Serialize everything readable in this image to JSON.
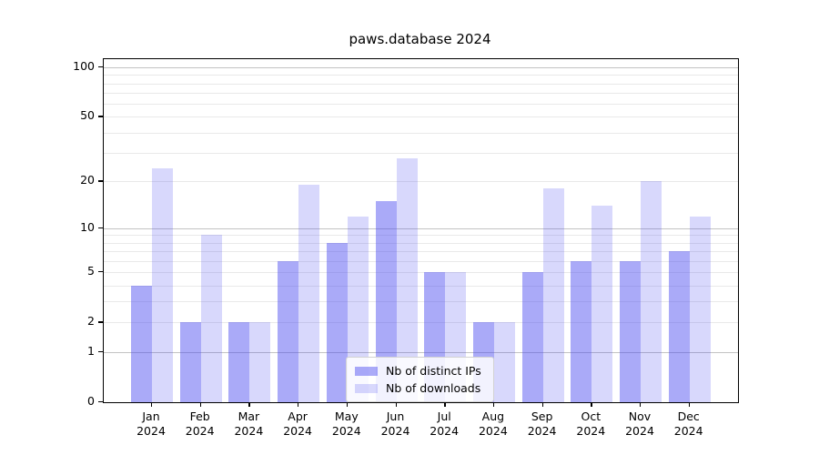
{
  "chart_data": {
    "type": "bar",
    "title": "paws.database 2024",
    "categories": [
      "Jan 2024",
      "Feb 2024",
      "Mar 2024",
      "Apr 2024",
      "May 2024",
      "Jun 2024",
      "Jul 2024",
      "Aug 2024",
      "Sep 2024",
      "Oct 2024",
      "Nov 2024",
      "Dec 2024"
    ],
    "series": [
      {
        "name": "Nb of distinct IPs",
        "color": "rgba(70,70,240,0.46)",
        "values": [
          4,
          2,
          2,
          6,
          8,
          15,
          5,
          2,
          5,
          6,
          6,
          7
        ]
      },
      {
        "name": "Nb of downloads",
        "color": "rgba(70,70,240,0.21)",
        "values": [
          24,
          9,
          2,
          19,
          12,
          28,
          5,
          2,
          18,
          14,
          20,
          12
        ]
      }
    ],
    "yscale": "log1p",
    "ylim": [
      0,
      112
    ],
    "yticks": [
      0,
      1,
      2,
      5,
      10,
      20,
      50,
      100
    ],
    "ytick_labels": [
      "0",
      "1",
      "2",
      "5",
      "10",
      "20",
      "50",
      "100"
    ],
    "major_gridlines": [
      1,
      10,
      100
    ],
    "minor_gridlines": [
      2,
      3,
      4,
      5,
      6,
      7,
      8,
      9,
      20,
      30,
      40,
      50,
      60,
      70,
      80,
      90
    ],
    "grid": "on",
    "legend_position": "lower center",
    "colors": {
      "major_grid": "#c3c3c3",
      "minor_grid": "#e9e9e9",
      "spine": "#000000",
      "text": "#000000"
    }
  }
}
